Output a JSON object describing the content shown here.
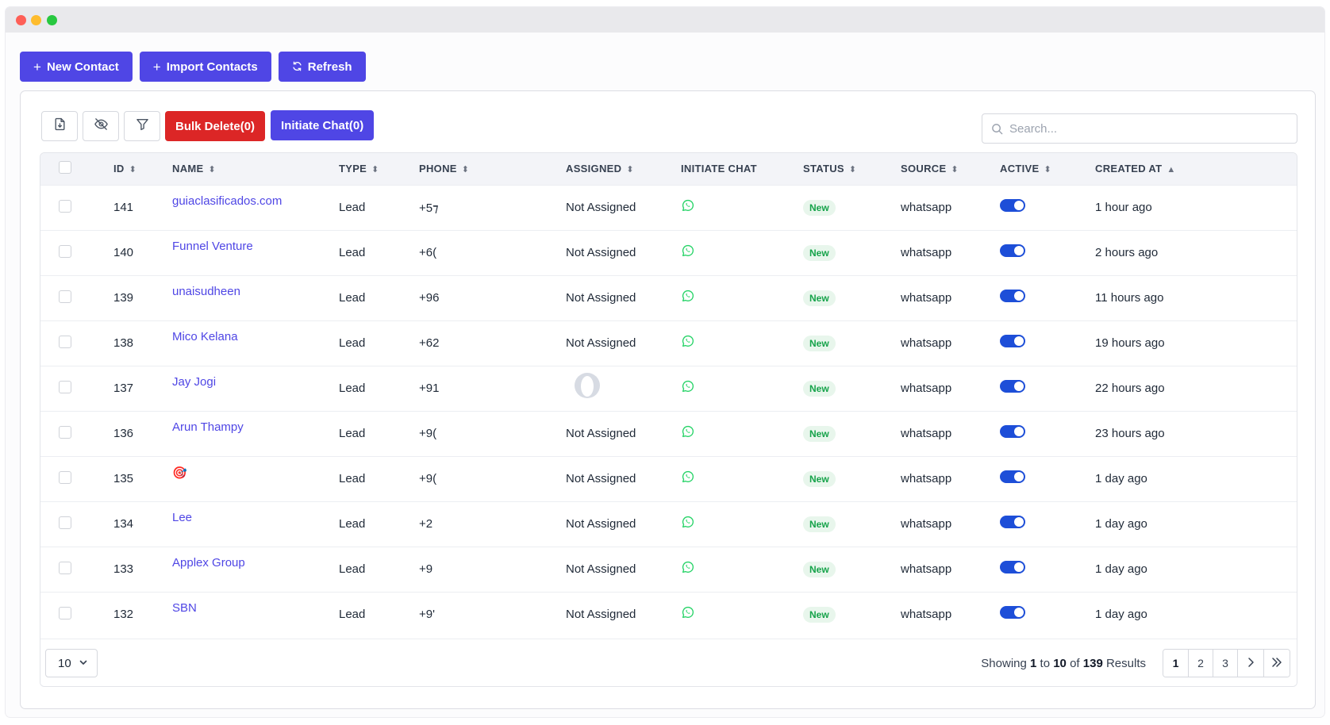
{
  "actions": {
    "new_contact": "New Contact",
    "import_contacts": "Import Contacts",
    "refresh": "Refresh"
  },
  "toolbar": {
    "export_icon": "file-download-icon",
    "hide_columns_icon": "eye-off-icon",
    "filter_icon": "filter-icon",
    "bulk_delete": "Bulk Delete(0)",
    "initiate_chat": "Initiate Chat(0)",
    "search_placeholder": "Search..."
  },
  "table": {
    "headers": {
      "id": "ID",
      "name": "NAME",
      "type": "TYPE",
      "phone": "PHONE",
      "assigned": "ASSIGNED",
      "initiate_chat": "INITIATE CHAT",
      "status": "STATUS",
      "source": "SOURCE",
      "active": "ACTIVE",
      "created_at": "CREATED AT"
    },
    "rows": [
      {
        "id": "141",
        "name": "guiaclasificados.com",
        "type": "Lead",
        "phone": "+5⁊",
        "assigned": "Not Assigned",
        "status": "New",
        "source": "whatsapp",
        "active": true,
        "created_at": "1 hour ago"
      },
      {
        "id": "140",
        "name": "Funnel Venture",
        "type": "Lead",
        "phone": "+6(",
        "assigned": "Not Assigned",
        "status": "New",
        "source": "whatsapp",
        "active": true,
        "created_at": "2 hours ago"
      },
      {
        "id": "139",
        "name": "unaisudheen",
        "type": "Lead",
        "phone": "+96",
        "assigned": "Not Assigned",
        "status": "New",
        "source": "whatsapp",
        "active": true,
        "created_at": "11 hours ago"
      },
      {
        "id": "138",
        "name": "Mico Kelana",
        "type": "Lead",
        "phone": "+62",
        "assigned": "Not Assigned",
        "status": "New",
        "source": "whatsapp",
        "active": true,
        "created_at": "19 hours ago"
      },
      {
        "id": "137",
        "name": "Jay Jogi",
        "type": "Lead",
        "phone": "+91",
        "assigned": "",
        "assigned_avatar": true,
        "status": "New",
        "source": "whatsapp",
        "active": true,
        "created_at": "22 hours ago"
      },
      {
        "id": "136",
        "name": "Arun Thampy",
        "type": "Lead",
        "phone": "+9(",
        "assigned": "Not Assigned",
        "status": "New",
        "source": "whatsapp",
        "active": true,
        "created_at": "23 hours ago"
      },
      {
        "id": "135",
        "name": "🎯",
        "type": "Lead",
        "phone": "+9(",
        "assigned": "Not Assigned",
        "status": "New",
        "source": "whatsapp",
        "active": true,
        "created_at": "1 day ago"
      },
      {
        "id": "134",
        "name": "Lee",
        "type": "Lead",
        "phone": "+2",
        "assigned": "Not Assigned",
        "status": "New",
        "source": "whatsapp",
        "active": true,
        "created_at": "1 day ago"
      },
      {
        "id": "133",
        "name": "Applex Group",
        "type": "Lead",
        "phone": "+9",
        "assigned": "Not Assigned",
        "status": "New",
        "source": "whatsapp",
        "active": true,
        "created_at": "1 day ago"
      },
      {
        "id": "132",
        "name": "SBN",
        "type": "Lead",
        "phone": "+9'",
        "assigned": "Not Assigned",
        "status": "New",
        "source": "whatsapp",
        "active": true,
        "created_at": "1 day ago"
      }
    ]
  },
  "footer": {
    "per_page": "10",
    "showing_prefix": "Showing",
    "from": "1",
    "to_word": "to",
    "to": "10",
    "of_word": "of",
    "total": "139",
    "results_word": "Results",
    "pages": [
      "1",
      "2",
      "3"
    ],
    "current_page": "1"
  },
  "colors": {
    "primary": "#4f46e5",
    "danger": "#dc2626",
    "whatsapp": "#25d366",
    "badge_green": "#16a34a",
    "toggle": "#1d4ed8"
  }
}
